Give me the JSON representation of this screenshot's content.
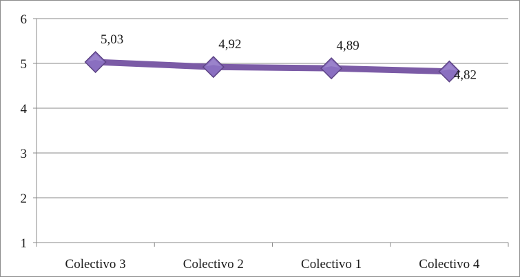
{
  "chart_data": {
    "type": "line",
    "title": "",
    "xlabel": "",
    "ylabel": "",
    "categories": [
      "Colectivo 3",
      "Colectivo 2",
      "Colectivo 1",
      "Colectivo 4"
    ],
    "series": [
      {
        "values": [
          5.03,
          4.92,
          4.89,
          4.82
        ],
        "data_labels": [
          "5,03",
          "4,92",
          "4,89",
          "4,82"
        ],
        "color": "#7b5ba6",
        "marker": "diamond"
      }
    ],
    "ylim": [
      1,
      6
    ],
    "yticks": [
      "1",
      "2",
      "3",
      "4",
      "5",
      "6"
    ],
    "grid": true,
    "legend": "none"
  }
}
